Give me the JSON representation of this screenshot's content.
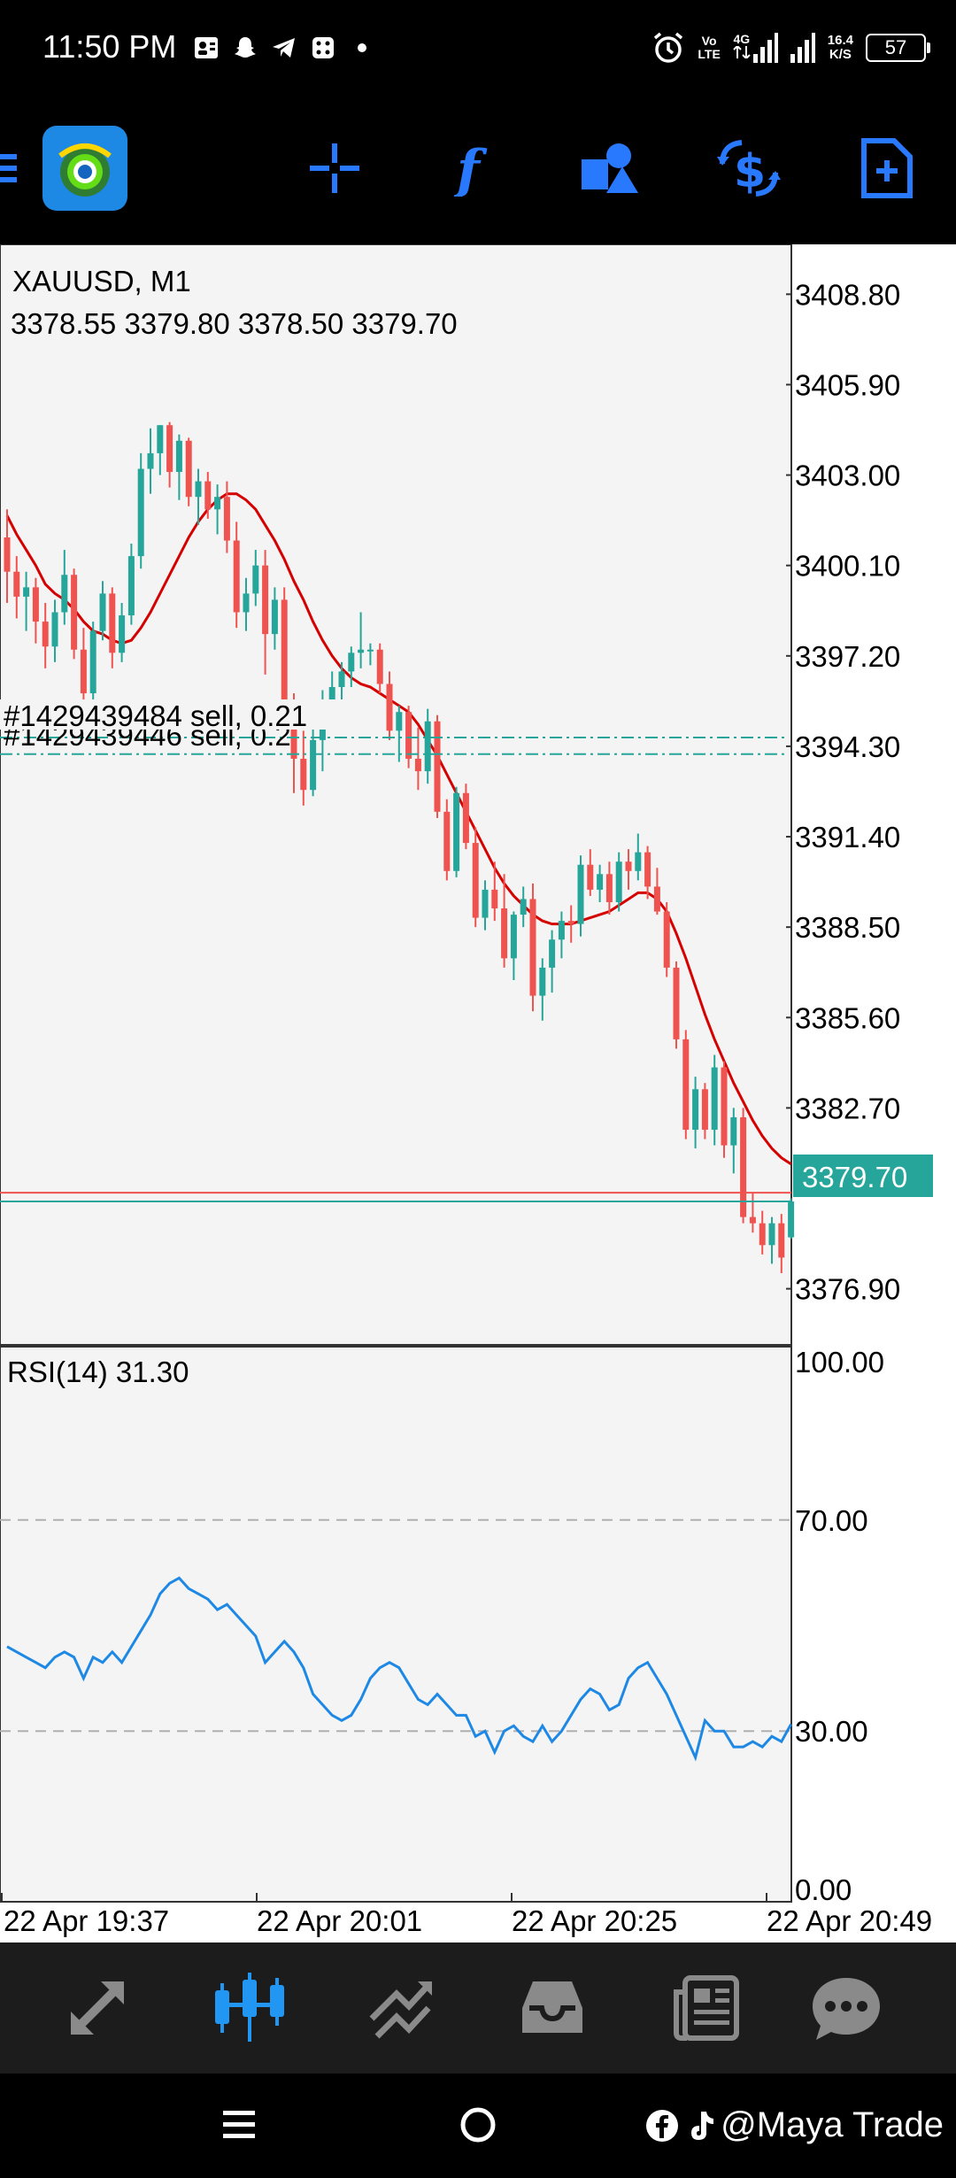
{
  "status": {
    "time": "11:50 PM",
    "net_tag_top": "Vo",
    "net_tag_bottom": "LTE",
    "net_4g": "4G",
    "net_speed_value": "16.4",
    "net_speed_unit": "K/S",
    "battery": "57"
  },
  "toolbar": {
    "icons": [
      "menu-icon",
      "metatrader-logo-icon",
      "crosshair-icon",
      "function-icon",
      "objects-icon",
      "trade-icon",
      "new-order-icon"
    ],
    "accent": "#2979ff"
  },
  "chart": {
    "symbol_title": "XAUUSD, M1",
    "ohlc_text": "3378.55 3379.80 3378.50 3379.70",
    "order1_label": "#1429439484 sell, 0.21",
    "order2_label": "#1429439446 sell, 0.2",
    "current_price": "3379.70",
    "rsi_title": "RSI(14) 31.30",
    "colors": {
      "up": "#26a69a",
      "down": "#ef5350",
      "ma": "#d50000",
      "rsi": "#1e88e5",
      "order": "#26a69a",
      "price_tag": "#26a69a"
    }
  },
  "chart_data": {
    "type": "candlestick",
    "title": "XAUUSD, M1",
    "price_axis": {
      "ticks": [
        "3408.80",
        "3405.90",
        "3403.00",
        "3400.10",
        "3397.20",
        "3394.30",
        "3391.40",
        "3388.50",
        "3385.60",
        "3382.70",
        "3376.90"
      ],
      "range": [
        3375.1,
        3410.4
      ]
    },
    "time_axis": {
      "labels": [
        "22 Apr 19:37",
        "22 Apr 20:01",
        "22 Apr 20:25",
        "22 Apr 20:49"
      ]
    },
    "candles": [
      [
        3401.0,
        3401.9,
        3398.9,
        3399.9
      ],
      [
        3399.9,
        3400.4,
        3398.4,
        3399.1
      ],
      [
        3399.1,
        3399.9,
        3398.0,
        3399.4
      ],
      [
        3399.4,
        3399.7,
        3397.6,
        3398.3
      ],
      [
        3398.3,
        3398.9,
        3396.8,
        3397.5
      ],
      [
        3397.5,
        3399.0,
        3397.0,
        3398.6
      ],
      [
        3398.6,
        3400.6,
        3398.2,
        3399.8
      ],
      [
        3399.8,
        3400.0,
        3397.1,
        3397.4
      ],
      [
        3397.4,
        3398.1,
        3395.3,
        3396.0
      ],
      [
        3396.0,
        3398.3,
        3395.6,
        3398.0
      ],
      [
        3398.0,
        3399.6,
        3397.7,
        3399.2
      ],
      [
        3399.2,
        3399.4,
        3396.8,
        3397.3
      ],
      [
        3397.3,
        3398.9,
        3397.0,
        3398.5
      ],
      [
        3398.5,
        3400.8,
        3398.2,
        3400.4
      ],
      [
        3400.4,
        3403.7,
        3400.0,
        3403.2
      ],
      [
        3403.2,
        3404.5,
        3402.4,
        3403.7
      ],
      [
        3403.7,
        3404.6,
        3403.0,
        3404.6
      ],
      [
        3404.6,
        3404.7,
        3402.6,
        3403.1
      ],
      [
        3403.1,
        3404.3,
        3402.2,
        3404.1
      ],
      [
        3404.1,
        3404.2,
        3402.0,
        3402.3
      ],
      [
        3402.3,
        3403.2,
        3401.4,
        3402.8
      ],
      [
        3402.8,
        3403.1,
        3401.6,
        3401.9
      ],
      [
        3401.9,
        3402.7,
        3401.1,
        3402.3
      ],
      [
        3402.3,
        3402.8,
        3400.5,
        3400.9
      ],
      [
        3400.9,
        3401.5,
        3398.1,
        3398.6
      ],
      [
        3398.6,
        3399.7,
        3398.0,
        3399.2
      ],
      [
        3399.2,
        3400.6,
        3398.8,
        3400.1
      ],
      [
        3400.1,
        3400.6,
        3396.6,
        3397.9
      ],
      [
        3397.9,
        3399.4,
        3397.4,
        3399.0
      ],
      [
        3399.0,
        3399.4,
        3395.3,
        3395.6
      ],
      [
        3395.6,
        3396.0,
        3392.8,
        3393.9
      ],
      [
        3393.9,
        3394.8,
        3392.4,
        3392.9
      ],
      [
        3392.9,
        3394.9,
        3392.7,
        3394.5
      ],
      [
        3394.5,
        3396.1,
        3393.5,
        3395.7
      ],
      [
        3395.7,
        3396.7,
        3395.3,
        3396.2
      ],
      [
        3396.2,
        3397.0,
        3395.8,
        3396.7
      ],
      [
        3396.7,
        3397.5,
        3396.2,
        3397.3
      ],
      [
        3397.3,
        3398.6,
        3396.8,
        3397.4
      ],
      [
        3397.4,
        3397.6,
        3396.9,
        3397.4
      ],
      [
        3397.4,
        3397.6,
        3396.0,
        3396.3
      ],
      [
        3396.3,
        3396.7,
        3394.5,
        3394.8
      ],
      [
        3394.8,
        3395.6,
        3393.8,
        3395.4
      ],
      [
        3395.4,
        3395.6,
        3393.6,
        3393.9
      ],
      [
        3393.9,
        3394.9,
        3392.9,
        3393.5
      ],
      [
        3393.5,
        3395.5,
        3393.1,
        3395.1
      ],
      [
        3395.1,
        3395.3,
        3392.0,
        3392.2
      ],
      [
        3392.2,
        3392.6,
        3390.0,
        3390.3
      ],
      [
        3390.3,
        3393.0,
        3390.1,
        3392.8
      ],
      [
        3392.8,
        3393.1,
        3391.0,
        3391.2
      ],
      [
        3391.2,
        3391.7,
        3388.5,
        3388.8
      ],
      [
        3388.8,
        3390.0,
        3388.4,
        3389.7
      ],
      [
        3389.7,
        3390.6,
        3388.7,
        3389.1
      ],
      [
        3389.1,
        3390.2,
        3387.2,
        3387.5
      ],
      [
        3387.5,
        3389.0,
        3386.8,
        3388.9
      ],
      [
        3388.9,
        3389.8,
        3388.5,
        3389.4
      ],
      [
        3389.4,
        3389.9,
        3385.8,
        3386.3
      ],
      [
        3386.3,
        3387.5,
        3385.5,
        3387.2
      ],
      [
        3387.2,
        3388.4,
        3386.4,
        3388.1
      ],
      [
        3388.1,
        3389.0,
        3387.5,
        3388.7
      ],
      [
        3388.7,
        3389.2,
        3388.0,
        3388.6
      ],
      [
        3388.6,
        3390.8,
        3388.2,
        3390.5
      ],
      [
        3390.5,
        3391.0,
        3389.5,
        3389.7
      ],
      [
        3389.7,
        3390.5,
        3389.3,
        3390.2
      ],
      [
        3390.2,
        3390.6,
        3388.9,
        3389.3
      ],
      [
        3389.3,
        3390.9,
        3389.0,
        3390.6
      ],
      [
        3390.6,
        3391.0,
        3389.7,
        3390.3
      ],
      [
        3390.3,
        3391.5,
        3390.0,
        3390.9
      ],
      [
        3390.9,
        3391.1,
        3389.4,
        3389.8
      ],
      [
        3389.8,
        3390.4,
        3388.9,
        3389.0
      ],
      [
        3389.0,
        3389.3,
        3386.9,
        3387.2
      ],
      [
        3387.2,
        3387.4,
        3384.6,
        3384.9
      ],
      [
        3384.9,
        3385.2,
        3381.7,
        3382.0
      ],
      [
        3382.0,
        3383.7,
        3381.4,
        3383.3
      ],
      [
        3383.3,
        3383.5,
        3381.7,
        3382.0
      ],
      [
        3382.0,
        3384.4,
        3381.5,
        3384.0
      ],
      [
        3384.0,
        3384.2,
        3381.1,
        3381.5
      ],
      [
        3381.5,
        3382.7,
        3380.6,
        3382.4
      ],
      [
        3382.4,
        3382.7,
        3379.0,
        3379.2
      ],
      [
        3379.2,
        3380.0,
        3378.7,
        3379.0
      ],
      [
        3379.0,
        3379.4,
        3378.0,
        3378.3
      ],
      [
        3378.3,
        3379.2,
        3377.7,
        3379.0
      ],
      [
        3379.0,
        3379.3,
        3377.4,
        3377.9
      ],
      [
        3378.55,
        3379.8,
        3378.5,
        3379.7
      ]
    ],
    "ma_values": [
      3401.7,
      3401.1,
      3400.6,
      3400.1,
      3399.5,
      3399.2,
      3399.0,
      3398.7,
      3398.3,
      3398.0,
      3397.9,
      3397.7,
      3397.6,
      3397.7,
      3398.1,
      3398.6,
      3399.2,
      3399.8,
      3400.4,
      3401.0,
      3401.5,
      3401.9,
      3402.2,
      3402.4,
      3402.4,
      3402.2,
      3401.9,
      3401.4,
      3400.9,
      3400.3,
      3399.6,
      3399.0,
      3398.3,
      3397.7,
      3397.2,
      3396.8,
      3396.5,
      3396.3,
      3396.2,
      3396.0,
      3395.8,
      3395.6,
      3395.4,
      3395.0,
      3394.5,
      3394.0,
      3393.4,
      3392.8,
      3392.2,
      3391.6,
      3391.0,
      3390.4,
      3389.9,
      3389.5,
      3389.2,
      3388.9,
      3388.7,
      3388.6,
      3388.6,
      3388.6,
      3388.7,
      3388.8,
      3388.9,
      3389.0,
      3389.2,
      3389.4,
      3389.6,
      3389.6,
      3389.4,
      3389.0,
      3388.3,
      3387.5,
      3386.6,
      3385.7,
      3384.9,
      3384.2,
      3383.5,
      3382.9,
      3382.3,
      3381.8,
      3381.4,
      3381.1,
      3380.9
    ],
    "orders": [
      {
        "label": "#1429439484 sell, 0.21",
        "price": 3394.58
      },
      {
        "label": "#1429439446 sell, 0.2",
        "price": 3394.05
      }
    ],
    "bid": 3379.7,
    "ask": 3379.98,
    "rsi": {
      "title": "RSI(14) 31.30",
      "ticks": [
        "100.00",
        "70.00",
        "30.00",
        "0.00"
      ],
      "levels": [
        70,
        30
      ],
      "range": [
        0,
        100
      ],
      "values": [
        46,
        45,
        44,
        43,
        42,
        44,
        45,
        44,
        40,
        44,
        43,
        45,
        43,
        46,
        49,
        52,
        56,
        58,
        59,
        57,
        56,
        55,
        53,
        54,
        52,
        50,
        48,
        43,
        45,
        47,
        45,
        42,
        37,
        35,
        33,
        32,
        33,
        36,
        40,
        42,
        43,
        42,
        39,
        36,
        35,
        37,
        35,
        33,
        33,
        29,
        30,
        26,
        30,
        31,
        29,
        28,
        31,
        28,
        30,
        33,
        36,
        38,
        37,
        34,
        35,
        40,
        42,
        43,
        40,
        37,
        33,
        29,
        25,
        32,
        30,
        30,
        27,
        27,
        28,
        27,
        29,
        28,
        31.3
      ]
    }
  },
  "bottom_nav": {
    "items": [
      "quotes-icon",
      "chart-icon",
      "trade-icon",
      "history-icon",
      "news-icon",
      "chat-icon"
    ],
    "active": 1
  },
  "system_nav": {
    "watermark": "@Maya Trade"
  }
}
